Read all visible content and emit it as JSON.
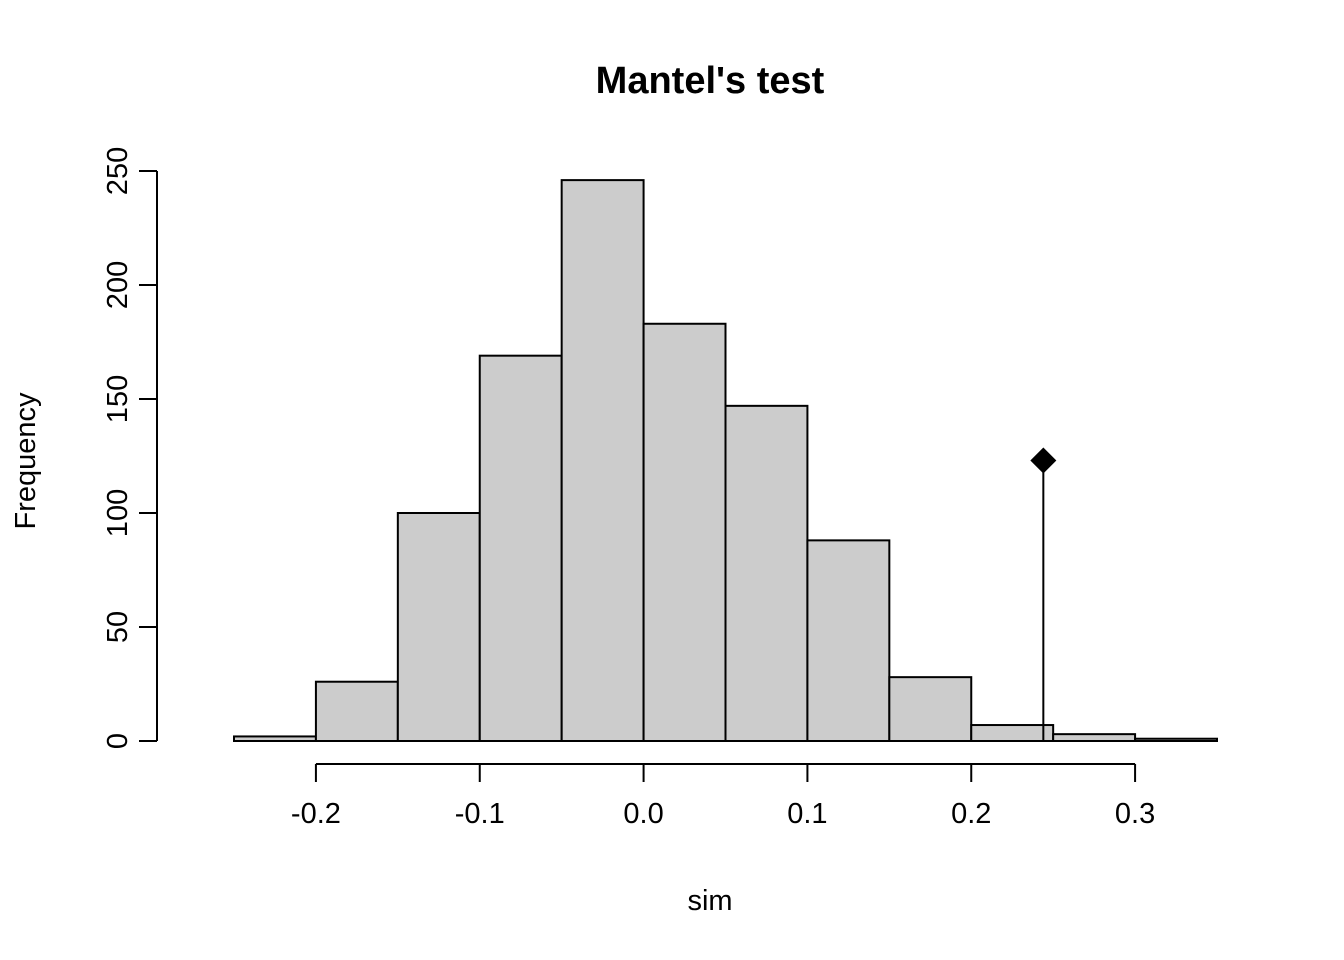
{
  "chart_data": {
    "type": "bar",
    "title": "Mantel's test",
    "xlabel": "sim",
    "ylabel": "Frequency",
    "xlim": [
      -0.25,
      0.35
    ],
    "ylim": [
      0,
      250
    ],
    "x_ticks": [
      -0.2,
      -0.1,
      0.0,
      0.1,
      0.2,
      0.3
    ],
    "x_tick_labels": [
      "-0.2",
      "-0.1",
      "0.0",
      "0.1",
      "0.2",
      "0.3"
    ],
    "y_ticks": [
      0,
      50,
      100,
      150,
      200,
      250
    ],
    "y_tick_labels": [
      "0",
      "50",
      "100",
      "150",
      "200",
      "250"
    ],
    "bins": [
      {
        "x0": -0.25,
        "x1": -0.2,
        "count": 2
      },
      {
        "x0": -0.2,
        "x1": -0.15,
        "count": 26
      },
      {
        "x0": -0.15,
        "x1": -0.1,
        "count": 100
      },
      {
        "x0": -0.1,
        "x1": -0.05,
        "count": 169
      },
      {
        "x0": -0.05,
        "x1": 0.0,
        "count": 246
      },
      {
        "x0": 0.0,
        "x1": 0.05,
        "count": 183
      },
      {
        "x0": 0.05,
        "x1": 0.1,
        "count": 147
      },
      {
        "x0": 0.1,
        "x1": 0.15,
        "count": 88
      },
      {
        "x0": 0.15,
        "x1": 0.2,
        "count": 28
      },
      {
        "x0": 0.2,
        "x1": 0.25,
        "count": 7
      },
      {
        "x0": 0.25,
        "x1": 0.3,
        "count": 3
      },
      {
        "x0": 0.3,
        "x1": 0.35,
        "count": 1
      }
    ],
    "observed": {
      "x": 0.244,
      "y": 123
    },
    "colors": {
      "bar_fill": "#cccccc",
      "stroke": "#000000"
    },
    "grid": false
  }
}
